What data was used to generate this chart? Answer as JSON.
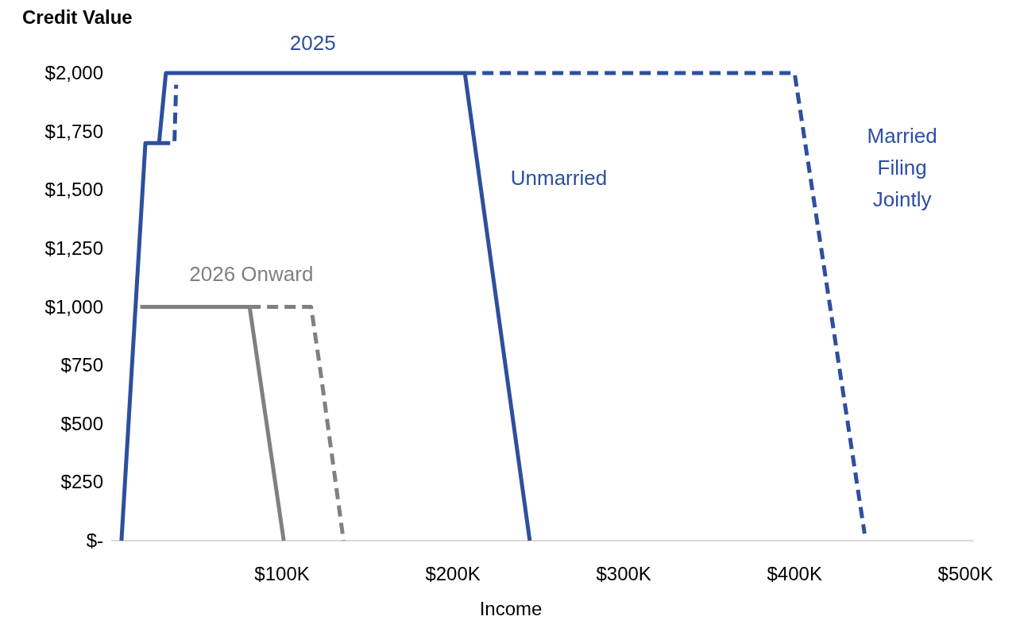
{
  "chart_data": {
    "type": "line",
    "ylabel": "Credit Value",
    "xlabel": "Income",
    "xlim": [
      0,
      505000
    ],
    "xticks": [
      {
        "value": 100000,
        "label": "$100K"
      },
      {
        "value": 200000,
        "label": "$200K"
      },
      {
        "value": 300000,
        "label": "$300K"
      },
      {
        "value": 400000,
        "label": "$400K"
      },
      {
        "value": 500000,
        "label": "$500K"
      }
    ],
    "ylim": [
      0,
      2000
    ],
    "yticks": [
      {
        "value": 0,
        "label": "$-"
      },
      {
        "value": 250,
        "label": "$250"
      },
      {
        "value": 500,
        "label": "$500"
      },
      {
        "value": 750,
        "label": "$750"
      },
      {
        "value": 1000,
        "label": "$1,000"
      },
      {
        "value": 1250,
        "label": "$1,250"
      },
      {
        "value": 1500,
        "label": "$1,500"
      },
      {
        "value": 1750,
        "label": "$1,750"
      },
      {
        "value": 2000,
        "label": "$2,000"
      }
    ],
    "grid": false,
    "marker": "none",
    "series": [
      {
        "color": "#2e4f9e",
        "line_style": "solid",
        "x": [
          6000,
          20000,
          28000,
          32000,
          207000,
          245000
        ],
        "values": [
          0,
          1700,
          1700,
          2000,
          2000,
          0
        ]
      },
      {
        "color": "#2e4f9e",
        "line_style": "dashed",
        "x": [
          28000,
          37000,
          38000,
          100000,
          207000,
          400000,
          441000
        ],
        "values": [
          1700,
          1700,
          1950,
          null,
          2000,
          2000,
          30
        ]
      },
      {
        "color": "#808080",
        "line_style": "solid",
        "x": [
          17000,
          81000,
          86000,
          96000,
          101000
        ],
        "values": [
          1000,
          1000,
          750,
          250,
          0
        ]
      },
      {
        "color": "#808080",
        "line_style": "dashed",
        "x": [
          81000,
          117000,
          122000,
          136000
        ],
        "values": [
          1000,
          1000,
          750,
          0
        ]
      }
    ],
    "annotations": [
      "2025",
      "Unmarried",
      "Married\nFiling\nJointly",
      "2026 Onward"
    ]
  }
}
